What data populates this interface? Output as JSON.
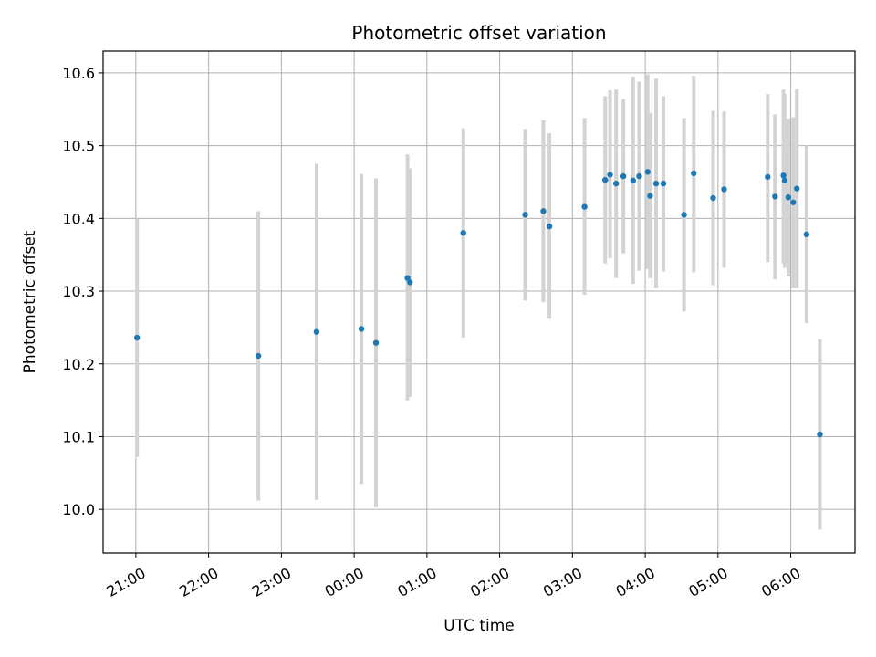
{
  "chart_data": {
    "type": "scatter",
    "title": "Photometric offset variation",
    "xlabel": "UTC time",
    "ylabel": "Photometric offset",
    "x_unit": "UTC time, HH:MM (times after 00:00 are on the following day)",
    "xlim": [
      "20:33",
      "06:53"
    ],
    "ylim": [
      9.94,
      10.63
    ],
    "x_ticks": [
      "21:00",
      "22:00",
      "23:00",
      "00:00",
      "01:00",
      "02:00",
      "03:00",
      "04:00",
      "05:00",
      "06:00"
    ],
    "y_ticks": [
      10.0,
      10.1,
      10.2,
      10.3,
      10.4,
      10.5,
      10.6
    ],
    "y_tick_labels": [
      "10.0",
      "10.1",
      "10.2",
      "10.3",
      "10.4",
      "10.5",
      "10.6"
    ],
    "grid": true,
    "marker_color": "#1f77b4",
    "errorbar_color": "#d3d3d3",
    "points": [
      {
        "x": "21:01",
        "y": 10.236,
        "ylo": 10.072,
        "yhi": 10.4
      },
      {
        "x": "22:41",
        "y": 10.211,
        "ylo": 10.012,
        "yhi": 10.41
      },
      {
        "x": "23:29",
        "y": 10.244,
        "ylo": 10.013,
        "yhi": 10.475
      },
      {
        "x": "00:06",
        "y": 10.248,
        "ylo": 10.035,
        "yhi": 10.461
      },
      {
        "x": "00:18",
        "y": 10.229,
        "ylo": 10.003,
        "yhi": 10.455
      },
      {
        "x": "00:44",
        "y": 10.318,
        "ylo": 10.15,
        "yhi": 10.488
      },
      {
        "x": "00:46",
        "y": 10.312,
        "ylo": 10.155,
        "yhi": 10.469
      },
      {
        "x": "01:30",
        "y": 10.38,
        "ylo": 10.236,
        "yhi": 10.524
      },
      {
        "x": "02:21",
        "y": 10.405,
        "ylo": 10.287,
        "yhi": 10.523
      },
      {
        "x": "02:36",
        "y": 10.41,
        "ylo": 10.285,
        "yhi": 10.535
      },
      {
        "x": "02:41",
        "y": 10.389,
        "ylo": 10.262,
        "yhi": 10.517
      },
      {
        "x": "03:10",
        "y": 10.416,
        "ylo": 10.295,
        "yhi": 10.538
      },
      {
        "x": "03:27",
        "y": 10.453,
        "ylo": 10.338,
        "yhi": 10.568
      },
      {
        "x": "03:31",
        "y": 10.46,
        "ylo": 10.345,
        "yhi": 10.576
      },
      {
        "x": "03:36",
        "y": 10.448,
        "ylo": 10.318,
        "yhi": 10.577
      },
      {
        "x": "03:42",
        "y": 10.458,
        "ylo": 10.352,
        "yhi": 10.564
      },
      {
        "x": "03:50",
        "y": 10.452,
        "ylo": 10.31,
        "yhi": 10.595
      },
      {
        "x": "03:55",
        "y": 10.458,
        "ylo": 10.328,
        "yhi": 10.588
      },
      {
        "x": "04:02",
        "y": 10.464,
        "ylo": 10.33,
        "yhi": 10.598
      },
      {
        "x": "04:04",
        "y": 10.431,
        "ylo": 10.318,
        "yhi": 10.545
      },
      {
        "x": "04:09",
        "y": 10.448,
        "ylo": 10.304,
        "yhi": 10.592
      },
      {
        "x": "04:15",
        "y": 10.448,
        "ylo": 10.327,
        "yhi": 10.568
      },
      {
        "x": "04:32",
        "y": 10.405,
        "ylo": 10.272,
        "yhi": 10.538
      },
      {
        "x": "04:40",
        "y": 10.462,
        "ylo": 10.326,
        "yhi": 10.596
      },
      {
        "x": "04:56",
        "y": 10.428,
        "ylo": 10.308,
        "yhi": 10.548
      },
      {
        "x": "05:05",
        "y": 10.44,
        "ylo": 10.332,
        "yhi": 10.547
      },
      {
        "x": "05:41",
        "y": 10.457,
        "ylo": 10.34,
        "yhi": 10.571
      },
      {
        "x": "05:47",
        "y": 10.43,
        "ylo": 10.316,
        "yhi": 10.543
      },
      {
        "x": "05:54",
        "y": 10.459,
        "ylo": 10.338,
        "yhi": 10.577
      },
      {
        "x": "05:55",
        "y": 10.452,
        "ylo": 10.332,
        "yhi": 10.571
      },
      {
        "x": "05:58",
        "y": 10.429,
        "ylo": 10.32,
        "yhi": 10.537
      },
      {
        "x": "06:02",
        "y": 10.422,
        "ylo": 10.304,
        "yhi": 10.539
      },
      {
        "x": "06:05",
        "y": 10.441,
        "ylo": 10.304,
        "yhi": 10.578
      },
      {
        "x": "06:13",
        "y": 10.378,
        "ylo": 10.256,
        "yhi": 10.5
      },
      {
        "x": "06:24",
        "y": 10.103,
        "ylo": 9.972,
        "yhi": 10.234
      }
    ]
  }
}
